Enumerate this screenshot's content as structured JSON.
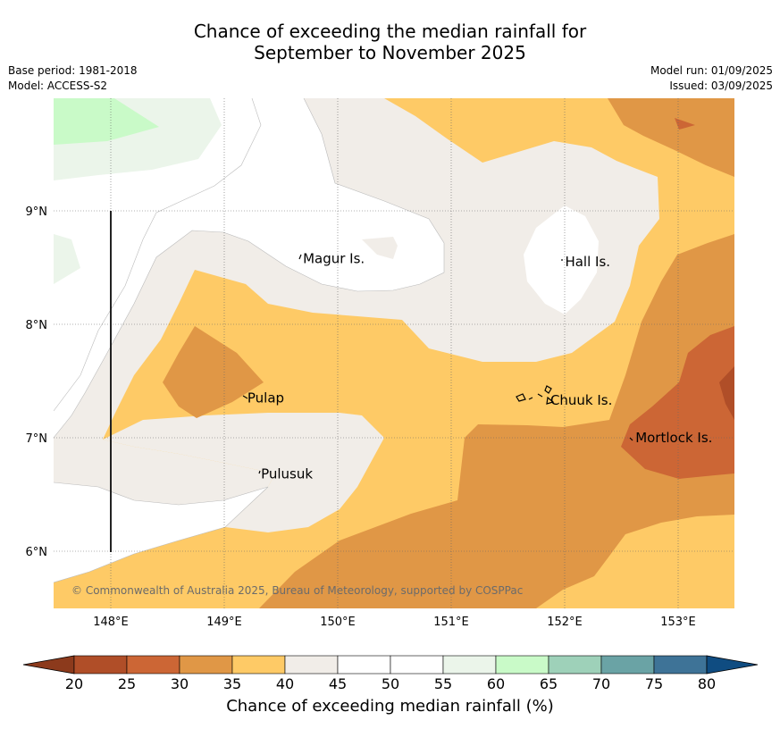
{
  "title": {
    "line1": "Chance of exceeding the median rainfall for",
    "line2": "September to November 2025"
  },
  "meta": {
    "base_period": "Base period: 1981-2018",
    "model": "Model: ACCESS-S2",
    "model_run": "Model run: 01/09/2025",
    "issued": "Issued: 03/09/2025"
  },
  "map": {
    "copyright": "© Commonwealth of Australia 2025, Bureau of Meteorology, supported by COSPPac",
    "lon_ticks": [
      "148°E",
      "149°E",
      "150°E",
      "151°E",
      "152°E",
      "153°E"
    ],
    "lat_ticks": [
      "9°N",
      "8°N",
      "7°N",
      "6°N"
    ],
    "places": [
      {
        "name": "Magur Is.",
        "lon": 149.67,
        "lat": 8.58
      },
      {
        "name": "Hall Is.",
        "lon": 151.98,
        "lat": 8.55
      },
      {
        "name": "Pulap",
        "lon": 149.18,
        "lat": 7.35
      },
      {
        "name": "Chuuk Is.",
        "lon": 151.85,
        "lat": 7.33
      },
      {
        "name": "Mortlock Is.",
        "lon": 152.6,
        "lat": 7.0
      },
      {
        "name": "Pulusuk",
        "lon": 149.3,
        "lat": 6.68
      }
    ],
    "extent": {
      "lon": [
        147.5,
        153.5
      ],
      "lat": [
        5.5,
        10.0
      ]
    }
  },
  "colorbar": {
    "label": "Chance of exceeding median rainfall (%)",
    "ticks": [
      "20",
      "25",
      "30",
      "35",
      "40",
      "45",
      "50",
      "55",
      "60",
      "65",
      "70",
      "75",
      "80"
    ],
    "under_color": "#8c3a1c",
    "over_color": "#0f4c81",
    "colors": [
      "#b04e28",
      "#cc6635",
      "#e09746",
      "#feca66",
      "#f1ede8",
      "#ffffff",
      "#ffffff",
      "#ebf5ea",
      "#c9fac8",
      "#9ed1b9",
      "#6aa3a5",
      "#3e7397"
    ]
  }
}
